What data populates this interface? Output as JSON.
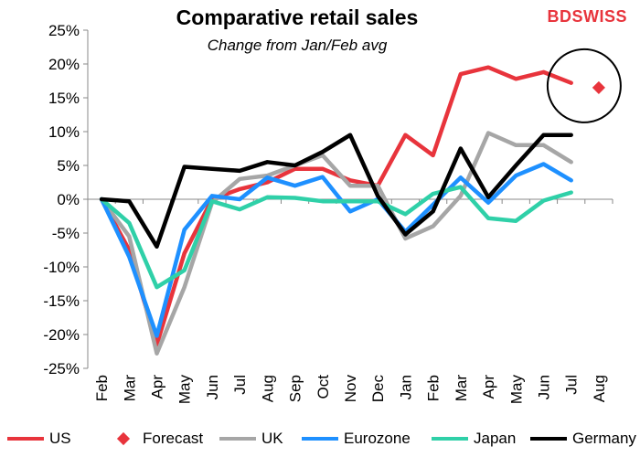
{
  "brand": {
    "part1": "BD",
    "part2": "SWISS"
  },
  "chart_data": {
    "type": "line",
    "title": "Comparative retail sales",
    "subtitle": "Change from Jan/Feb avg",
    "categories": [
      "Feb",
      "Mar",
      "Apr",
      "May",
      "Jun",
      "Jul",
      "Aug",
      "Sep",
      "Oct",
      "Nov",
      "Dec",
      "Jan",
      "Feb",
      "Mar",
      "Apr",
      "May",
      "Jun",
      "Jul",
      "Aug"
    ],
    "ylim": [
      -25,
      25
    ],
    "yticks": [
      -25,
      -20,
      -15,
      -10,
      -5,
      0,
      5,
      10,
      15,
      20,
      25
    ],
    "ytick_labels": [
      "-25%",
      "-20%",
      "-15%",
      "-10%",
      "-5%",
      "0%",
      "5%",
      "10%",
      "15%",
      "20%",
      "25%"
    ],
    "series": [
      {
        "name": "US",
        "color": "#e8343c",
        "values": [
          0,
          -7.5,
          -21.5,
          -8,
          0,
          1.5,
          2.5,
          4.5,
          4.5,
          2.8,
          2.0,
          9.5,
          6.5,
          18.5,
          19.5,
          17.8,
          18.8,
          17.2,
          null
        ]
      },
      {
        "name": "UK",
        "color": "#a6a6a6",
        "values": [
          0,
          -5.5,
          -22.8,
          -13,
          -0.5,
          3.0,
          3.5,
          5.0,
          6.5,
          2.0,
          2.0,
          -5.8,
          -4.0,
          0.5,
          9.8,
          8.0,
          8.0,
          5.5,
          null
        ]
      },
      {
        "name": "Eurozone",
        "color": "#1e90ff",
        "values": [
          0,
          -8.5,
          -20.2,
          -4.5,
          0.5,
          0,
          3.2,
          2.0,
          3.3,
          -1.8,
          0,
          -4.8,
          -0.8,
          3.2,
          -0.5,
          3.5,
          5.2,
          2.8,
          null
        ]
      },
      {
        "name": "Japan",
        "color": "#2fd0a8",
        "values": [
          0,
          -3.5,
          -13.0,
          -10.5,
          -0.3,
          -1.5,
          0.3,
          0.2,
          -0.3,
          -0.3,
          -0.3,
          -2.2,
          0.8,
          1.8,
          -2.8,
          -3.2,
          -0.2,
          1.0,
          null
        ]
      },
      {
        "name": "Germany",
        "color": "#000000",
        "values": [
          0,
          -0.3,
          -7.0,
          4.8,
          4.5,
          4.2,
          5.5,
          5.0,
          7.0,
          9.5,
          0.5,
          -5.2,
          -1.8,
          7.5,
          0.3,
          5.0,
          9.5,
          9.5,
          null
        ]
      }
    ],
    "forecast": {
      "name": "Forecast",
      "color": "#e8343c",
      "category": "Aug",
      "value": 16.5
    },
    "legend": [
      "US",
      "Forecast",
      "UK",
      "Eurozone",
      "Japan",
      "Germany"
    ],
    "legend_position": "bottom",
    "grid": false
  }
}
